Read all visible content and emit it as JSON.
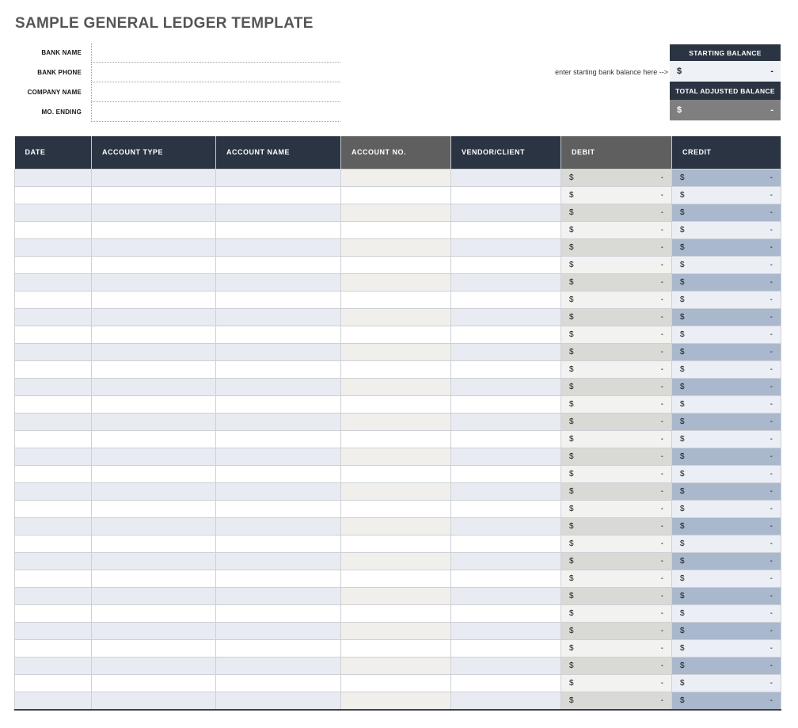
{
  "title": "SAMPLE GENERAL LEDGER TEMPLATE",
  "form": {
    "fields": [
      {
        "id": "bank-name",
        "label": "BANK NAME",
        "value": ""
      },
      {
        "id": "bank-phone",
        "label": "BANK PHONE",
        "value": ""
      },
      {
        "id": "company-name",
        "label": "COMPANY NAME",
        "value": ""
      },
      {
        "id": "mo-ending",
        "label": "MO. ENDING",
        "value": ""
      }
    ]
  },
  "balance": {
    "note": "enter starting bank balance here -->",
    "starting": {
      "label": "STARTING BALANCE",
      "currency_symbol": "$",
      "amount": "-"
    },
    "total_adjusted": {
      "label": "TOTAL ADJUSTED BALANCE",
      "currency_symbol": "$",
      "amount": "-"
    }
  },
  "table": {
    "columns": [
      {
        "label": "DATE",
        "key": "date",
        "header_variant": "navy",
        "type": "text"
      },
      {
        "label": "ACCOUNT TYPE",
        "key": "account_type",
        "header_variant": "navy",
        "type": "text"
      },
      {
        "label": "ACCOUNT NAME",
        "key": "account_name",
        "header_variant": "navy",
        "type": "text"
      },
      {
        "label": "ACCOUNT NO.",
        "key": "account_no",
        "header_variant": "gray",
        "type": "text"
      },
      {
        "label": "VENDOR/CLIENT",
        "key": "vendor_client",
        "header_variant": "navy",
        "type": "text"
      },
      {
        "label": "DEBIT",
        "key": "debit",
        "header_variant": "gray",
        "type": "money"
      },
      {
        "label": "CREDIT",
        "key": "credit",
        "header_variant": "navy",
        "type": "money"
      }
    ],
    "row_count": 31,
    "money_cell": {
      "currency_symbol": "$",
      "empty_value": "-"
    }
  },
  "colors": {
    "navy": "#2b3442",
    "header_gray": "#5f5f5f",
    "row_blue": "#e8ebf1",
    "row_warm": "#f0efec",
    "debit_odd": "#d9d9d6",
    "debit_even": "#f2f2f0",
    "credit_odd": "#a9b8cc",
    "credit_even": "#ebeef5",
    "balance_value_bg": "#eef1f6",
    "balance_total_bg": "#7f7f7f",
    "grid_line": "#cdd1d6",
    "title_color": "#555555",
    "table_bottom_border": "#3c434c"
  }
}
